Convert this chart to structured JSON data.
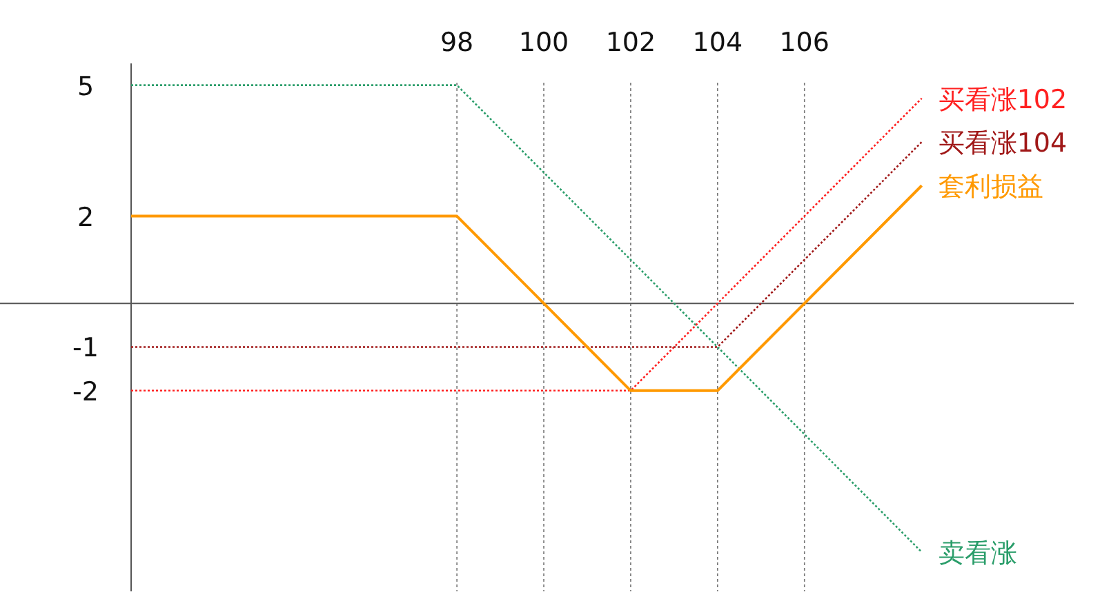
{
  "chart_data": {
    "type": "line",
    "xlim": [
      90.5,
      112.2
    ],
    "ylim": [
      -6.6,
      5.5
    ],
    "xticks": [
      98,
      100,
      102,
      104,
      106
    ],
    "yticks": [
      5,
      2,
      -1,
      -2
    ],
    "grid": "x",
    "series": [
      {
        "name": "卖看涨",
        "color": "#2a9d6a",
        "line_style": "dotted",
        "x": [
          90.5,
          98,
          108.7
        ],
        "values": [
          5,
          5,
          -5.7
        ]
      },
      {
        "name": "买看涨102",
        "color": "#ff2020",
        "line_style": "dotted",
        "x": [
          90.5,
          102,
          108.7
        ],
        "values": [
          -2,
          -2,
          4.7
        ]
      },
      {
        "name": "买看涨104",
        "color": "#a01818",
        "line_style": "dotted",
        "x": [
          90.5,
          104,
          108.7
        ],
        "values": [
          -1,
          -1,
          3.7
        ]
      },
      {
        "name": "套利损益",
        "color": "#ff9900",
        "line_style": "solid",
        "x": [
          90.5,
          98,
          102,
          104,
          108.7
        ],
        "values": [
          2,
          2,
          -2,
          -2,
          2.7
        ]
      }
    ]
  }
}
